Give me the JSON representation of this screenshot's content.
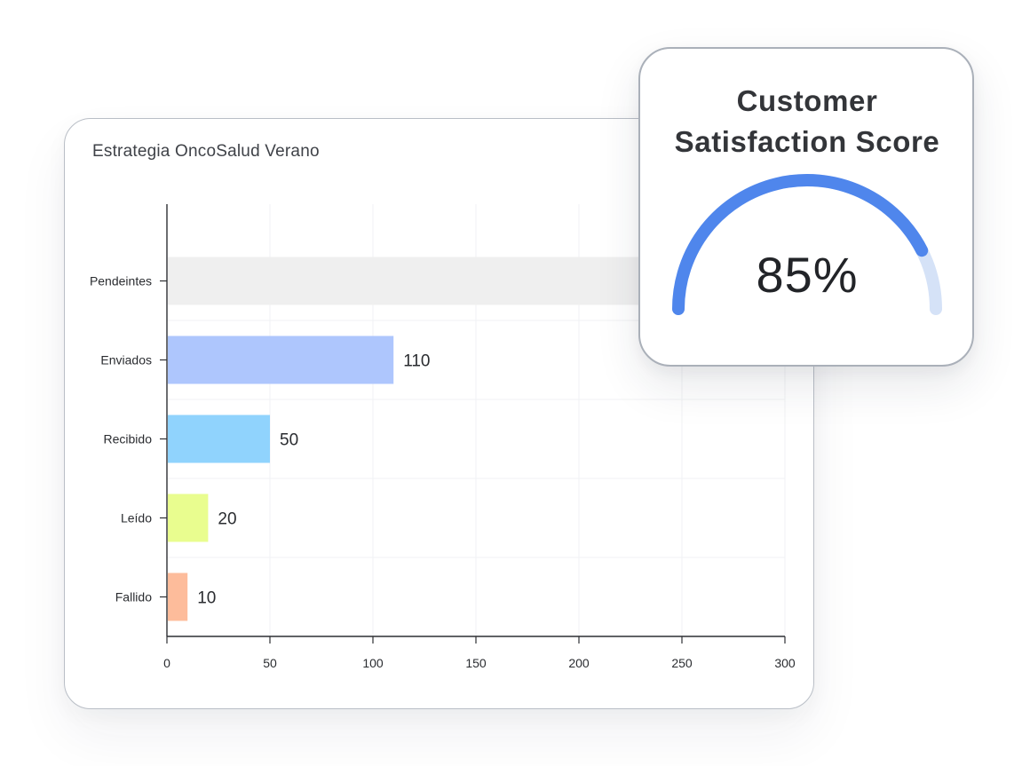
{
  "chart_data": {
    "type": "bar",
    "orientation": "horizontal",
    "title": "Estrategia OncoSalud Verano",
    "categories": [
      "Pendeintes",
      "Enviados",
      "Recibido",
      "Leído",
      "Fallido"
    ],
    "values": [
      null,
      110,
      50,
      20,
      10
    ],
    "data_labels": [
      "",
      "110",
      "50",
      "20",
      "10"
    ],
    "xlim": [
      0,
      300
    ],
    "x_ticks": [
      0,
      50,
      100,
      150,
      200,
      250,
      300
    ],
    "grid": true,
    "colors": [
      "#efefef",
      "#aec6fd",
      "#90d3fd",
      "#e9fd8f",
      "#fdbc9b"
    ]
  },
  "gauge": {
    "title_line1": "Customer",
    "title_line2": "Satisfaction Score",
    "value_label": "85%",
    "value": 0.85,
    "color_fill": "#4f86ec",
    "color_track": "#d5e2f7"
  }
}
